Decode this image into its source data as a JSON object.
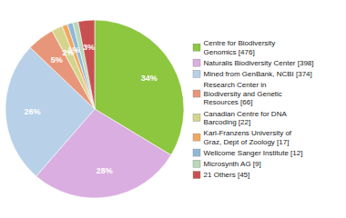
{
  "chart_data": {
    "type": "pie",
    "categories": [
      "Centre for Biodiversity\nGenomics [476]",
      "Naturalis Biodiversity Center [398]",
      "Mined from GenBank, NCBI [374]",
      "Research Center in\nBiodiversity and Genetic\nResources [66]",
      "Canadian Centre for DNA\nBarcoding [22]",
      "Karl-Franzens University of\nGraz, Dept of Zoology [17]",
      "Wellcome Sanger Institute [12]",
      "Microsynth AG [9]",
      "21 Others [45]"
    ],
    "values": [
      34,
      28,
      26,
      5,
      2,
      1,
      1,
      1,
      3
    ],
    "value_labels": [
      "34%",
      "28%",
      "26%",
      "5%",
      "2%",
      "1%",
      null,
      null,
      "3%"
    ],
    "data_labels": true,
    "colors": [
      "#8dc63f",
      "#daaee0",
      "#b8d0e8",
      "#e8967a",
      "#d4d48c",
      "#f0a860",
      "#90b8d8",
      "#b8d8b8",
      "#c85050"
    ],
    "legend": "right"
  }
}
